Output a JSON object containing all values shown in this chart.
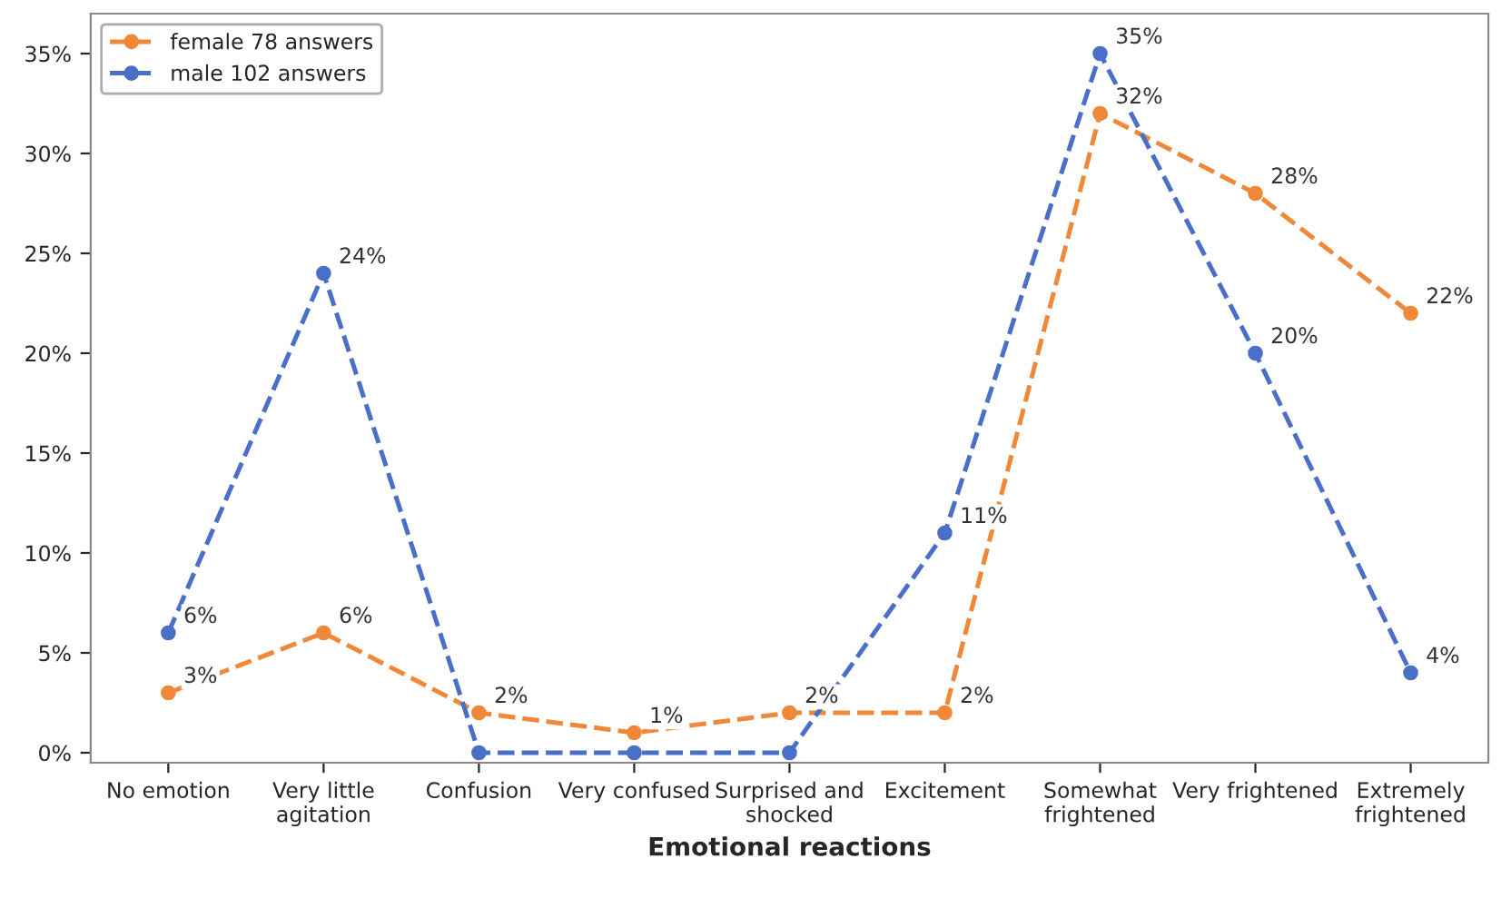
{
  "chart_data": {
    "type": "line",
    "xlabel": "Emotional reactions",
    "categories": [
      "No emotion",
      "Very little\nagitation",
      "Confusion",
      "Very confused",
      "Surprised and\nshocked",
      "Excitement",
      "Somewhat\nfrightened",
      "Very frightened",
      "Extremely\nfrightened"
    ],
    "series": [
      {
        "name": "female 78 answers",
        "color": "#f0883a",
        "values": [
          3,
          6,
          2,
          1,
          2,
          2,
          32,
          28,
          22
        ],
        "value_labels": [
          "3%",
          "6%",
          "2%",
          "1%",
          "2%",
          "2%",
          "32%",
          "28%",
          "22%"
        ]
      },
      {
        "name": "male 102 answers",
        "color": "#4a6fc8",
        "values": [
          6,
          24,
          0,
          0,
          0,
          11,
          35,
          20,
          4
        ],
        "value_labels": [
          "6%",
          "24%",
          null,
          null,
          null,
          "11%",
          "35%",
          "20%",
          "4%"
        ]
      }
    ],
    "ylim": [
      -0.5,
      37
    ],
    "yticks": [
      {
        "value": 0,
        "label": "0%"
      },
      {
        "value": 5,
        "label": "5%"
      },
      {
        "value": 10,
        "label": "10%"
      },
      {
        "value": 15,
        "label": "15%"
      },
      {
        "value": 20,
        "label": "20%"
      },
      {
        "value": 25,
        "label": "25%"
      },
      {
        "value": 30,
        "label": "30%"
      },
      {
        "value": 35,
        "label": "35%"
      }
    ],
    "legend": "top left",
    "marker": "circle",
    "line_style": "dashed",
    "grid": false
  }
}
